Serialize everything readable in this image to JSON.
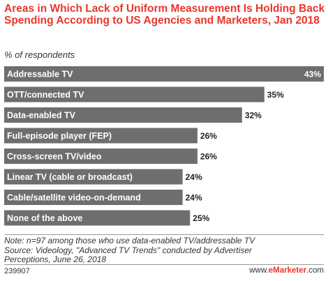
{
  "chart_data": {
    "type": "bar",
    "orientation": "horizontal",
    "title": "Areas in Which Lack of Uniform Measurement Is Holding Back Spending According to US Agencies and Marketers, Jan 2018",
    "subtitle": "% of respondents",
    "categories": [
      "Addressable TV",
      "OTT/connected TV",
      "Data-enabled TV",
      "Full-episode player (FEP)",
      "Cross-screen TV/video",
      "Linear TV (cable or broadcast)",
      "Cable/satellite video-on-demand",
      "None of the above"
    ],
    "values": [
      43,
      35,
      32,
      26,
      26,
      24,
      24,
      25
    ],
    "value_labels": [
      "43%",
      "35%",
      "32%",
      "26%",
      "26%",
      "24%",
      "24%",
      "25%"
    ],
    "xlim": [
      0,
      43
    ],
    "grid": false,
    "bar_color": "#6e6e6e"
  },
  "notes": {
    "line1": "Note: n=97 among those who use data-enabled TV/addressable TV",
    "line2": "Source: Videology, \"Advanced TV Trends\" conducted by Advertiser",
    "line3": "Perceptions, June 26, 2018"
  },
  "footer": {
    "id": "239907",
    "brand_prefix": "www.",
    "brand_name": "eMarketer",
    "brand_suffix": ".com"
  },
  "colors": {
    "title": "#e8362a",
    "bar": "#6e6e6e",
    "brand": "#e8362a"
  }
}
